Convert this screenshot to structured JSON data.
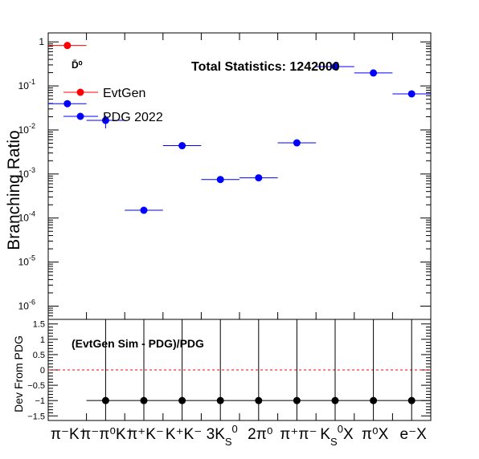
{
  "chart_data": [
    {
      "type": "scatter",
      "panel": "top",
      "ylabel": "Branching Ratio",
      "yscale": "log",
      "ylim": [
        5e-07,
        1.6
      ],
      "y_ticks": [
        {
          "v": 1,
          "base": "1",
          "exp": ""
        },
        {
          "v": 0.1,
          "base": "10",
          "exp": "-1"
        },
        {
          "v": 0.01,
          "base": "10",
          "exp": "-2"
        },
        {
          "v": 0.001,
          "base": "10",
          "exp": "-3"
        },
        {
          "v": 0.0001,
          "base": "10",
          "exp": "-4"
        },
        {
          "v": 1e-05,
          "base": "10",
          "exp": "-5"
        },
        {
          "v": 1e-06,
          "base": "10",
          "exp": "-6"
        }
      ],
      "particle_label": "D̄⁰",
      "stats_text": "Total Statistics: 1242000",
      "legend": [
        {
          "name": "EvtGen",
          "color": "#ff0000"
        },
        {
          "name": "PDG 2022",
          "color": "#0000ff"
        }
      ],
      "categories": [
        "π⁻K⁺",
        "π⁻π⁰K⁺",
        "π⁺K⁻",
        "K⁺K⁻",
        "3K_S⁰",
        "2π⁰",
        "π⁺π⁻",
        "K_S⁰X",
        "π⁰X",
        "e⁻X"
      ],
      "series": [
        {
          "name": "EvtGen",
          "color": "#ff0000",
          "points": [
            {
              "bin": 0,
              "y": 0.83
            }
          ]
        },
        {
          "name": "PDG 2022",
          "color": "#0000ff",
          "points": [
            {
              "bin": 0,
              "y": 0.0395
            },
            {
              "bin": 1,
              "y": 0.0165
            },
            {
              "bin": 2,
              "y": 0.00015
            },
            {
              "bin": 3,
              "y": 0.0044
            },
            {
              "bin": 4,
              "y": 0.00075
            },
            {
              "bin": 5,
              "y": 0.00082
            },
            {
              "bin": 6,
              "y": 0.0051
            },
            {
              "bin": 7,
              "y": 0.275
            },
            {
              "bin": 8,
              "y": 0.197
            },
            {
              "bin": 9,
              "y": 0.066
            }
          ]
        }
      ]
    },
    {
      "type": "scatter",
      "panel": "bottom",
      "ylabel": "Dev From PDG",
      "ylim": [
        -1.65,
        1.65
      ],
      "y_tick_labels": [
        "1.5",
        "1",
        "0.5",
        "0",
        "−0.5",
        "−1",
        "−1.5"
      ],
      "y_tick_values": [
        1.5,
        1,
        0.5,
        0,
        -0.5,
        -1,
        -1.5
      ],
      "annotation": "(EvtGen Sim - PDG)/PDG",
      "reference_line": 0,
      "x": [
        1,
        2,
        3,
        4,
        5,
        6,
        7,
        8,
        9
      ],
      "values": [
        -1,
        -1,
        -1,
        -1,
        -1,
        -1,
        -1,
        -1,
        -1
      ],
      "error_bars": "full"
    }
  ]
}
